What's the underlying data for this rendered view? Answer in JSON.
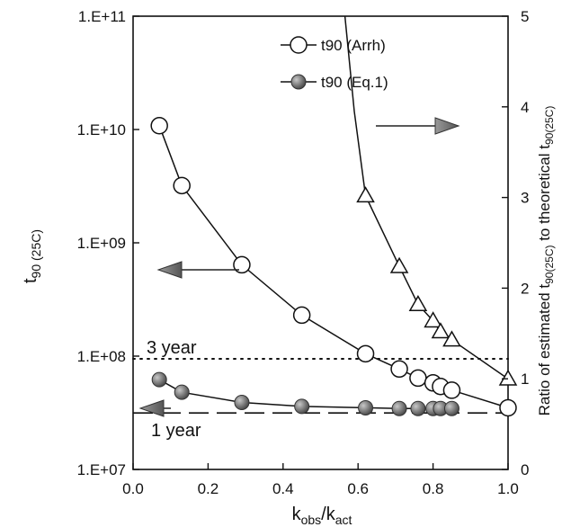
{
  "chart_data": {
    "type": "line",
    "xlabel_main": "k",
    "xlabel_sub1": "obs",
    "xlabel_sep": "/k",
    "xlabel_sub2": "act",
    "ylabel_left_main": "t",
    "ylabel_left_sub": "90 (25C)",
    "ylabel_right_pre": "Ratio of estimated t",
    "ylabel_right_sub1": "90(25C)",
    "ylabel_right_mid": " to theoretical t",
    "ylabel_right_sub2": "90(25C)",
    "xlim": [
      0.0,
      1.0
    ],
    "ylim_left": [
      10000000,
      100000000000
    ],
    "ylim_right": [
      0,
      5
    ],
    "y_left_scale": "log",
    "x_ticks": [
      "0.0",
      "0.2",
      "0.4",
      "0.6",
      "0.8",
      "1.0"
    ],
    "y_left_ticks": [
      "1.E+07",
      "1.E+08",
      "1.E+09",
      "1.E+10",
      "1.E+11"
    ],
    "y_right_ticks": [
      "0",
      "1",
      "2",
      "3",
      "4",
      "5"
    ],
    "legend_position": "top-center",
    "series": [
      {
        "name": "t90 (Arrh)",
        "axis": "left",
        "marker": "open-circle",
        "x": [
          0.07,
          0.13,
          0.29,
          0.45,
          0.62,
          0.71,
          0.76,
          0.8,
          0.82,
          0.85,
          1.0
        ],
        "y": [
          10800000000,
          3200000000,
          640000000,
          230000000,
          105000000,
          77000000,
          64000000,
          58000000,
          54000000,
          50000000,
          35000000
        ]
      },
      {
        "name": "t90 (Eq.1)",
        "axis": "left",
        "marker": "filled-circle",
        "x": [
          0.07,
          0.13,
          0.29,
          0.45,
          0.62,
          0.71,
          0.76,
          0.8,
          0.82,
          0.85
        ],
        "y": [
          62000000,
          48000000,
          39000000,
          36000000,
          35000000,
          34500000,
          34500000,
          34500000,
          34500000,
          34500000
        ]
      },
      {
        "name": "",
        "axis": "right",
        "marker": "open-triangle",
        "x": [
          0.62,
          0.71,
          0.76,
          0.8,
          0.82,
          0.85,
          1.0
        ],
        "y": [
          3.02,
          2.24,
          1.82,
          1.64,
          1.52,
          1.43,
          1.0
        ]
      }
    ],
    "reference_lines": [
      {
        "label": "3 year",
        "value": 94600000,
        "style": "dotted"
      },
      {
        "label": "1 year",
        "value": 31500000,
        "style": "dashed"
      }
    ],
    "arrows": [
      {
        "direction": "right",
        "points_to_axis": "right"
      },
      {
        "direction": "left",
        "points_to_axis": "left"
      },
      {
        "direction": "left",
        "points_to_axis": "left"
      }
    ]
  }
}
